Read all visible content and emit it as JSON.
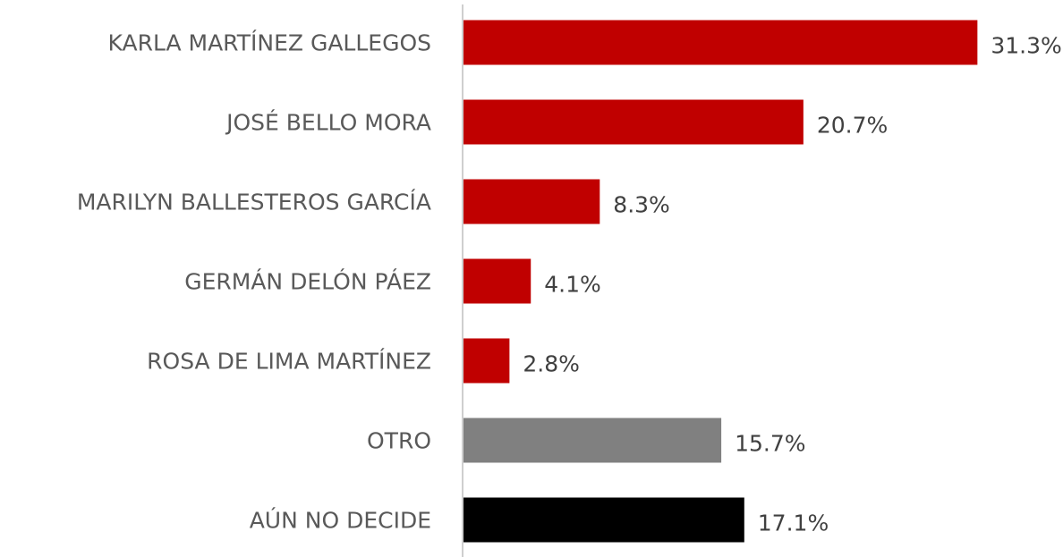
{
  "chart_data": {
    "type": "bar",
    "orientation": "horizontal",
    "categories": [
      "KARLA MARTÍNEZ GALLEGOS",
      "JOSÉ BELLO MORA",
      "MARILYN BALLESTEROS GARCÍA",
      "GERMÁN DELÓN PÁEZ",
      "ROSA DE LIMA MARTÍNEZ",
      "OTRO",
      "AÚN NO DECIDE"
    ],
    "values": [
      31.3,
      20.7,
      8.3,
      4.1,
      2.8,
      15.7,
      17.1
    ],
    "value_labels": [
      "31.3%",
      "20.7%",
      "8.3%",
      "4.1%",
      "2.8%",
      "15.7%",
      "17.1%"
    ],
    "colors": [
      "#c00000",
      "#c00000",
      "#c00000",
      "#c00000",
      "#c00000",
      "#808080",
      "#000000"
    ]
  }
}
